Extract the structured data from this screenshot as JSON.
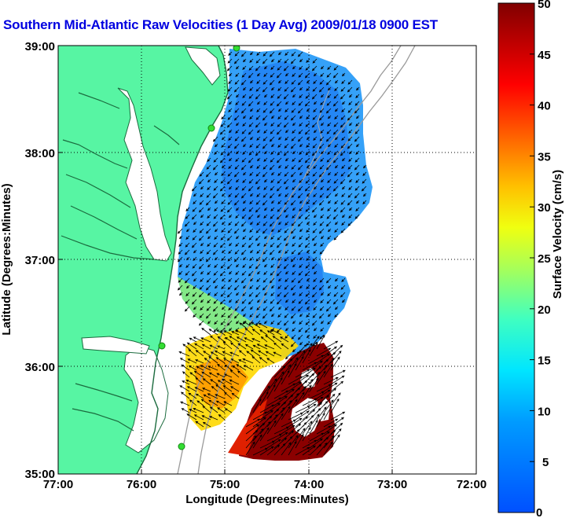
{
  "title": "Southern Mid-Atlantic Raw Velocities (1 Day Avg) 2009/01/18 0900 EST",
  "map": {
    "xlabel": "Longitude (Degrees:Minutes)",
    "ylabel": "Latitude (Degrees:Minutes)",
    "x_ticks": [
      "77:00",
      "76:00",
      "75:00",
      "74:00",
      "73:00",
      "72:00"
    ],
    "y_ticks": [
      "39:00",
      "38:00",
      "37:00",
      "36:00",
      "35:00"
    ],
    "grid": "dotted",
    "colors": {
      "land": "#57f5a3",
      "water": "#ffffff",
      "coast": "#1b6b3e",
      "isobath": "#9a9a9a",
      "station": "#33dd33",
      "arrows": "#000000"
    }
  },
  "colorbar": {
    "label": "Surface Velocity (cm/s)",
    "ticks": [
      "50",
      "45",
      "40",
      "35",
      "30",
      "25",
      "20",
      "15",
      "10",
      "5",
      "0"
    ],
    "min": 0,
    "max": 50,
    "colormap": "jet"
  },
  "velocity_field_summary": {
    "dominant_direction": "southwest",
    "slow_region": "offshore Delaware/Maryland/Virginia shelf, ~5-12 cm/s",
    "fast_region": "off Cape Hatteras, 35-36N 73.5-74.5W, ~50 cm/s, arrows toward northeast"
  }
}
